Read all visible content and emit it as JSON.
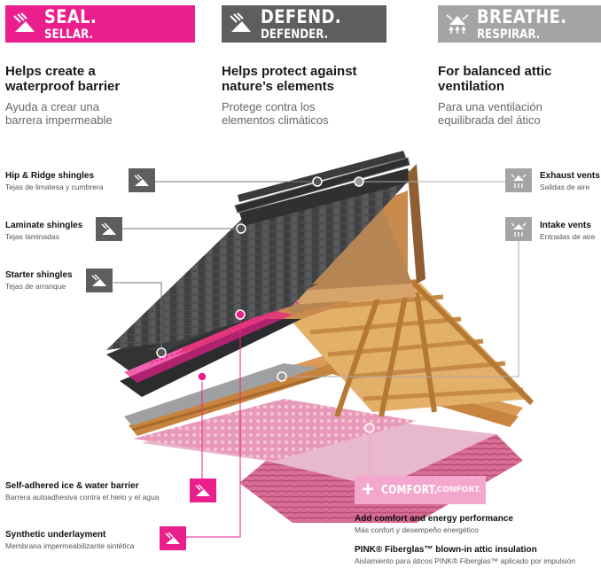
{
  "headers": [
    {
      "title": "SEAL.",
      "subtitle": "SELLAR.",
      "en": "Helps create a waterproof barrier",
      "es": "Ayuda a crear una barrera impermeable",
      "color": "#ea1e8c"
    },
    {
      "title": "DEFEND.",
      "subtitle": "DEFENDER.",
      "en": "Helps protect against nature’s elements",
      "es": "Protege contra los elementos climáticos",
      "color": "#5d5e60"
    },
    {
      "title": "BREATHE.",
      "subtitle": "RESPIRAR.",
      "en": "For balanced attic ventilation",
      "es": "Para una ventilación equilibrada del ático",
      "color": "#a3a4a6"
    }
  ],
  "callouts": {
    "hip_ridge": {
      "en": "Hip & Ridge shingles",
      "es": "Tejas de limatesa y cumbrera"
    },
    "laminate": {
      "en": "Laminate shingles",
      "es": "Tejas laminadas"
    },
    "starter": {
      "en": "Starter shingles",
      "es": "Tejas de arranque"
    },
    "exhaust": {
      "en": "Exhaust vents",
      "es": "Salidas de aire"
    },
    "intake": {
      "en": "Intake vents",
      "es": "Entradas de aire"
    },
    "ice_water": {
      "en": "Self-adhered ice & water barrier",
      "es": "Barrera autoadhesiva contra el hielo y el agua"
    },
    "underlayment": {
      "en": "Synthetic underlayment",
      "es": "Membrana impermeabilizante sintética"
    }
  },
  "comfort": {
    "label": "COMFORT.",
    "label_es": "CONFORT.",
    "perf_en": "Add comfort and energy performance",
    "perf_es": "Más confort y desempeño energético",
    "insul_en": "PINK® Fiberglas™ blown-in attic insulation",
    "insul_es": "Aislamiento para áticos PINK® Fiberglas™ aplicado por impulsión"
  },
  "colors": {
    "pink": "#ea1e8c",
    "dark_grey": "#5d5e60",
    "light_grey": "#a3a4a6",
    "light_pink": "#f4a7cc"
  }
}
